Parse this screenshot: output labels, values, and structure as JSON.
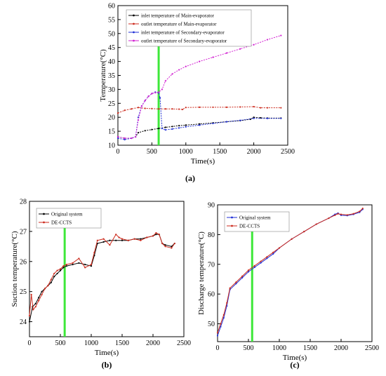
{
  "chart_data": [
    {
      "type": "line",
      "panel_label": "(a)",
      "xlabel": "Time(s)",
      "ylabel": "Temperature(°C)",
      "xlim": [
        0,
        2500
      ],
      "ylim": [
        10,
        60
      ],
      "xticks": [
        "0",
        "500",
        "1000",
        "1500",
        "2000",
        "2500"
      ],
      "yticks": [
        "10",
        "15",
        "20",
        "25",
        "30",
        "35",
        "40",
        "45",
        "50",
        "55",
        "60"
      ],
      "legend_position": "top-left",
      "marker_x": 600,
      "series": [
        {
          "name": "inlet temperature of Main-evaporator",
          "color": "#000000",
          "x": [
            0,
            100,
            200,
            260,
            300,
            400,
            500,
            600,
            700,
            800,
            900,
            1000,
            1200,
            1400,
            1600,
            1800,
            1950,
            2000,
            2100,
            2200,
            2400
          ],
          "y": [
            13,
            12.5,
            12.5,
            13,
            14.5,
            15.2,
            15.6,
            16,
            16.4,
            16.7,
            17,
            17.2,
            17.6,
            18,
            18.4,
            18.8,
            19.3,
            20,
            19.8,
            19.7,
            19.7
          ]
        },
        {
          "name": "outlet temperature of Main-evaporator",
          "color": "#cc2a1c",
          "x": [
            0,
            100,
            200,
            300,
            400,
            500,
            600,
            700,
            800,
            900,
            950,
            1000,
            1200,
            1400,
            1600,
            1800,
            2000,
            2100,
            2200,
            2400
          ],
          "y": [
            21.5,
            22.5,
            23,
            23.5,
            23.2,
            23.1,
            23,
            23,
            23,
            22.9,
            22.8,
            23.5,
            23.6,
            23.6,
            23.6,
            23.7,
            23.8,
            23.4,
            23.4,
            23.4
          ]
        },
        {
          "name": "inlet temperature of Secondary-evaporator",
          "color": "#1f2fd6",
          "x": [
            0,
            100,
            200,
            260,
            300,
            350,
            400,
            450,
            500,
            550,
            600,
            620,
            650,
            700,
            800,
            900,
            1000,
            1200,
            1400,
            1600,
            1800,
            2000,
            2200,
            2400
          ],
          "y": [
            12.5,
            12,
            12.5,
            13,
            20,
            24,
            26,
            27.5,
            28.5,
            29,
            28.8,
            27,
            16,
            15.5,
            15.8,
            16.2,
            16.6,
            17.2,
            17.8,
            18.4,
            18.9,
            19.6,
            19.6,
            19.6
          ]
        },
        {
          "name": "outlet temperature of Secondary-evaporator",
          "color": "#d21fd2",
          "x": [
            0,
            100,
            200,
            260,
            300,
            350,
            400,
            450,
            500,
            550,
            600,
            650,
            700,
            800,
            900,
            1000,
            1200,
            1400,
            1600,
            1800,
            2000,
            2200,
            2400
          ],
          "y": [
            13,
            12.5,
            12.5,
            13,
            19,
            24,
            26,
            27.5,
            28.5,
            28.8,
            29,
            30,
            33,
            35.5,
            37,
            38.2,
            40,
            41.5,
            43,
            44.5,
            46,
            47.8,
            49.3
          ]
        }
      ]
    },
    {
      "type": "line",
      "panel_label": "(b)",
      "xlabel": "Time(s)",
      "ylabel": "Suction temperature(°C)",
      "xlim": [
        0,
        2500
      ],
      "ylim": [
        23.5,
        28
      ],
      "xticks": [
        "0",
        "500",
        "1000",
        "1500",
        "2000",
        "2500"
      ],
      "yticks": [
        "24",
        "25",
        "26",
        "27",
        "28"
      ],
      "legend_position": "top-left",
      "marker_x": 570,
      "series": [
        {
          "name": "Original system",
          "color": "#000000",
          "x": [
            0,
            50,
            100,
            150,
            200,
            250,
            300,
            350,
            400,
            450,
            500,
            550,
            600,
            700,
            800,
            900,
            1000,
            1050,
            1100,
            1200,
            1300,
            1400,
            1500,
            1600,
            1700,
            1800,
            1900,
            2000,
            2050,
            2100,
            2150,
            2200,
            2300,
            2350
          ],
          "y": [
            24,
            24.5,
            24.6,
            24.8,
            25,
            25.1,
            25.2,
            25.3,
            25.5,
            25.6,
            25.7,
            25.8,
            25.85,
            25.9,
            25.95,
            25.9,
            25.85,
            26.2,
            26.6,
            26.65,
            26.7,
            26.7,
            26.7,
            26.7,
            26.75,
            26.75,
            26.8,
            26.85,
            26.9,
            26.9,
            26.6,
            26.55,
            26.5,
            26.6
          ]
        },
        {
          "name": "DE-CCTS",
          "color": "#cc2a1c",
          "x": [
            0,
            30,
            60,
            100,
            150,
            200,
            250,
            300,
            350,
            400,
            450,
            500,
            550,
            600,
            700,
            800,
            900,
            1000,
            1050,
            1100,
            1200,
            1300,
            1400,
            1450,
            1500,
            1600,
            1700,
            1800,
            1900,
            2000,
            2050,
            2100,
            2150,
            2200,
            2300,
            2350
          ],
          "y": [
            24.2,
            24.9,
            24.4,
            24.5,
            24.7,
            24.9,
            25.1,
            25.2,
            25.4,
            25.6,
            25.7,
            25.75,
            25.85,
            25.9,
            25.95,
            26.1,
            25.8,
            25.9,
            26.3,
            26.7,
            26.75,
            26.55,
            26.9,
            26.8,
            26.75,
            26.7,
            26.75,
            26.7,
            26.8,
            26.85,
            26.95,
            26.9,
            26.6,
            26.5,
            26.45,
            26.6
          ]
        }
      ]
    },
    {
      "type": "line",
      "panel_label": "(c)",
      "xlabel": "Time(s)",
      "ylabel": "Discharge temperature(°C)",
      "xlim": [
        0,
        2500
      ],
      "ylim": [
        44,
        90
      ],
      "xticks": [
        "0",
        "500",
        "1000",
        "1500",
        "2000",
        "2500"
      ],
      "yticks": [
        "50",
        "60",
        "70",
        "80",
        "90"
      ],
      "legend_position": "top-left",
      "marker_x": 560,
      "series": [
        {
          "name": "Original system",
          "color": "#1f2fd6",
          "x": [
            0,
            50,
            100,
            150,
            200,
            300,
            400,
            500,
            600,
            700,
            800,
            900,
            1000,
            1200,
            1400,
            1600,
            1800,
            1900,
            1950,
            2000,
            2100,
            2200,
            2300,
            2350
          ],
          "y": [
            46,
            49,
            52,
            56,
            61.5,
            63.5,
            65.5,
            67.5,
            69,
            70.5,
            72,
            73.5,
            75.5,
            78.5,
            81,
            83.5,
            85.5,
            86.8,
            87.2,
            86.5,
            86.4,
            86.8,
            87.5,
            88.5
          ]
        },
        {
          "name": "DE-CCTS",
          "color": "#cc2a1c",
          "x": [
            0,
            50,
            100,
            150,
            200,
            300,
            400,
            500,
            600,
            700,
            800,
            900,
            1000,
            1200,
            1400,
            1600,
            1800,
            1900,
            1950,
            2000,
            2100,
            2200,
            2300,
            2350
          ],
          "y": [
            47,
            50,
            53,
            57,
            62,
            64,
            66,
            68,
            69.5,
            71,
            72.5,
            74,
            75.5,
            78.5,
            81,
            83.5,
            85.5,
            86.5,
            87,
            86.8,
            86.6,
            87,
            87.8,
            88.8
          ]
        }
      ]
    }
  ]
}
